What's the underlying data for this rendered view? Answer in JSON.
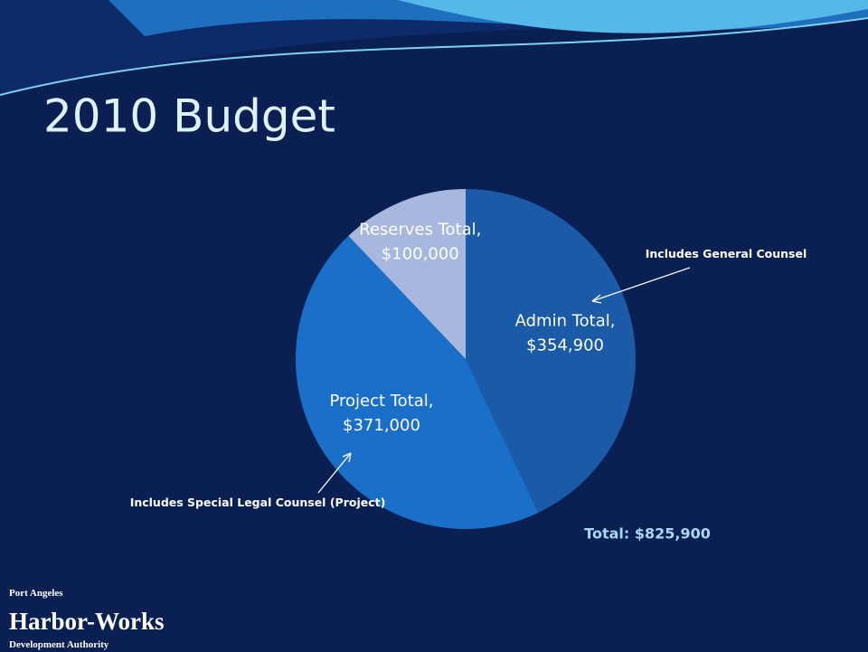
{
  "chart_data": {
    "type": "pie",
    "title": "2010 Budget",
    "categories": [
      "Admin Total,",
      "Project Total,",
      "Reserves Total,"
    ],
    "values": [
      354900,
      371000,
      100000
    ],
    "value_labels": [
      "$354,900",
      "$371,000",
      "$100,000"
    ],
    "colors": [
      "#1a5aa6",
      "#1a70c8",
      "#a7b7de"
    ],
    "annotations": [
      "Includes General Counsel",
      "Includes Special Legal Counsel (Project)",
      "Total: $825,900"
    ]
  },
  "footer": {
    "line1": "Port Angeles",
    "line2": "Harbor-Works",
    "line3": "Development Authority"
  }
}
